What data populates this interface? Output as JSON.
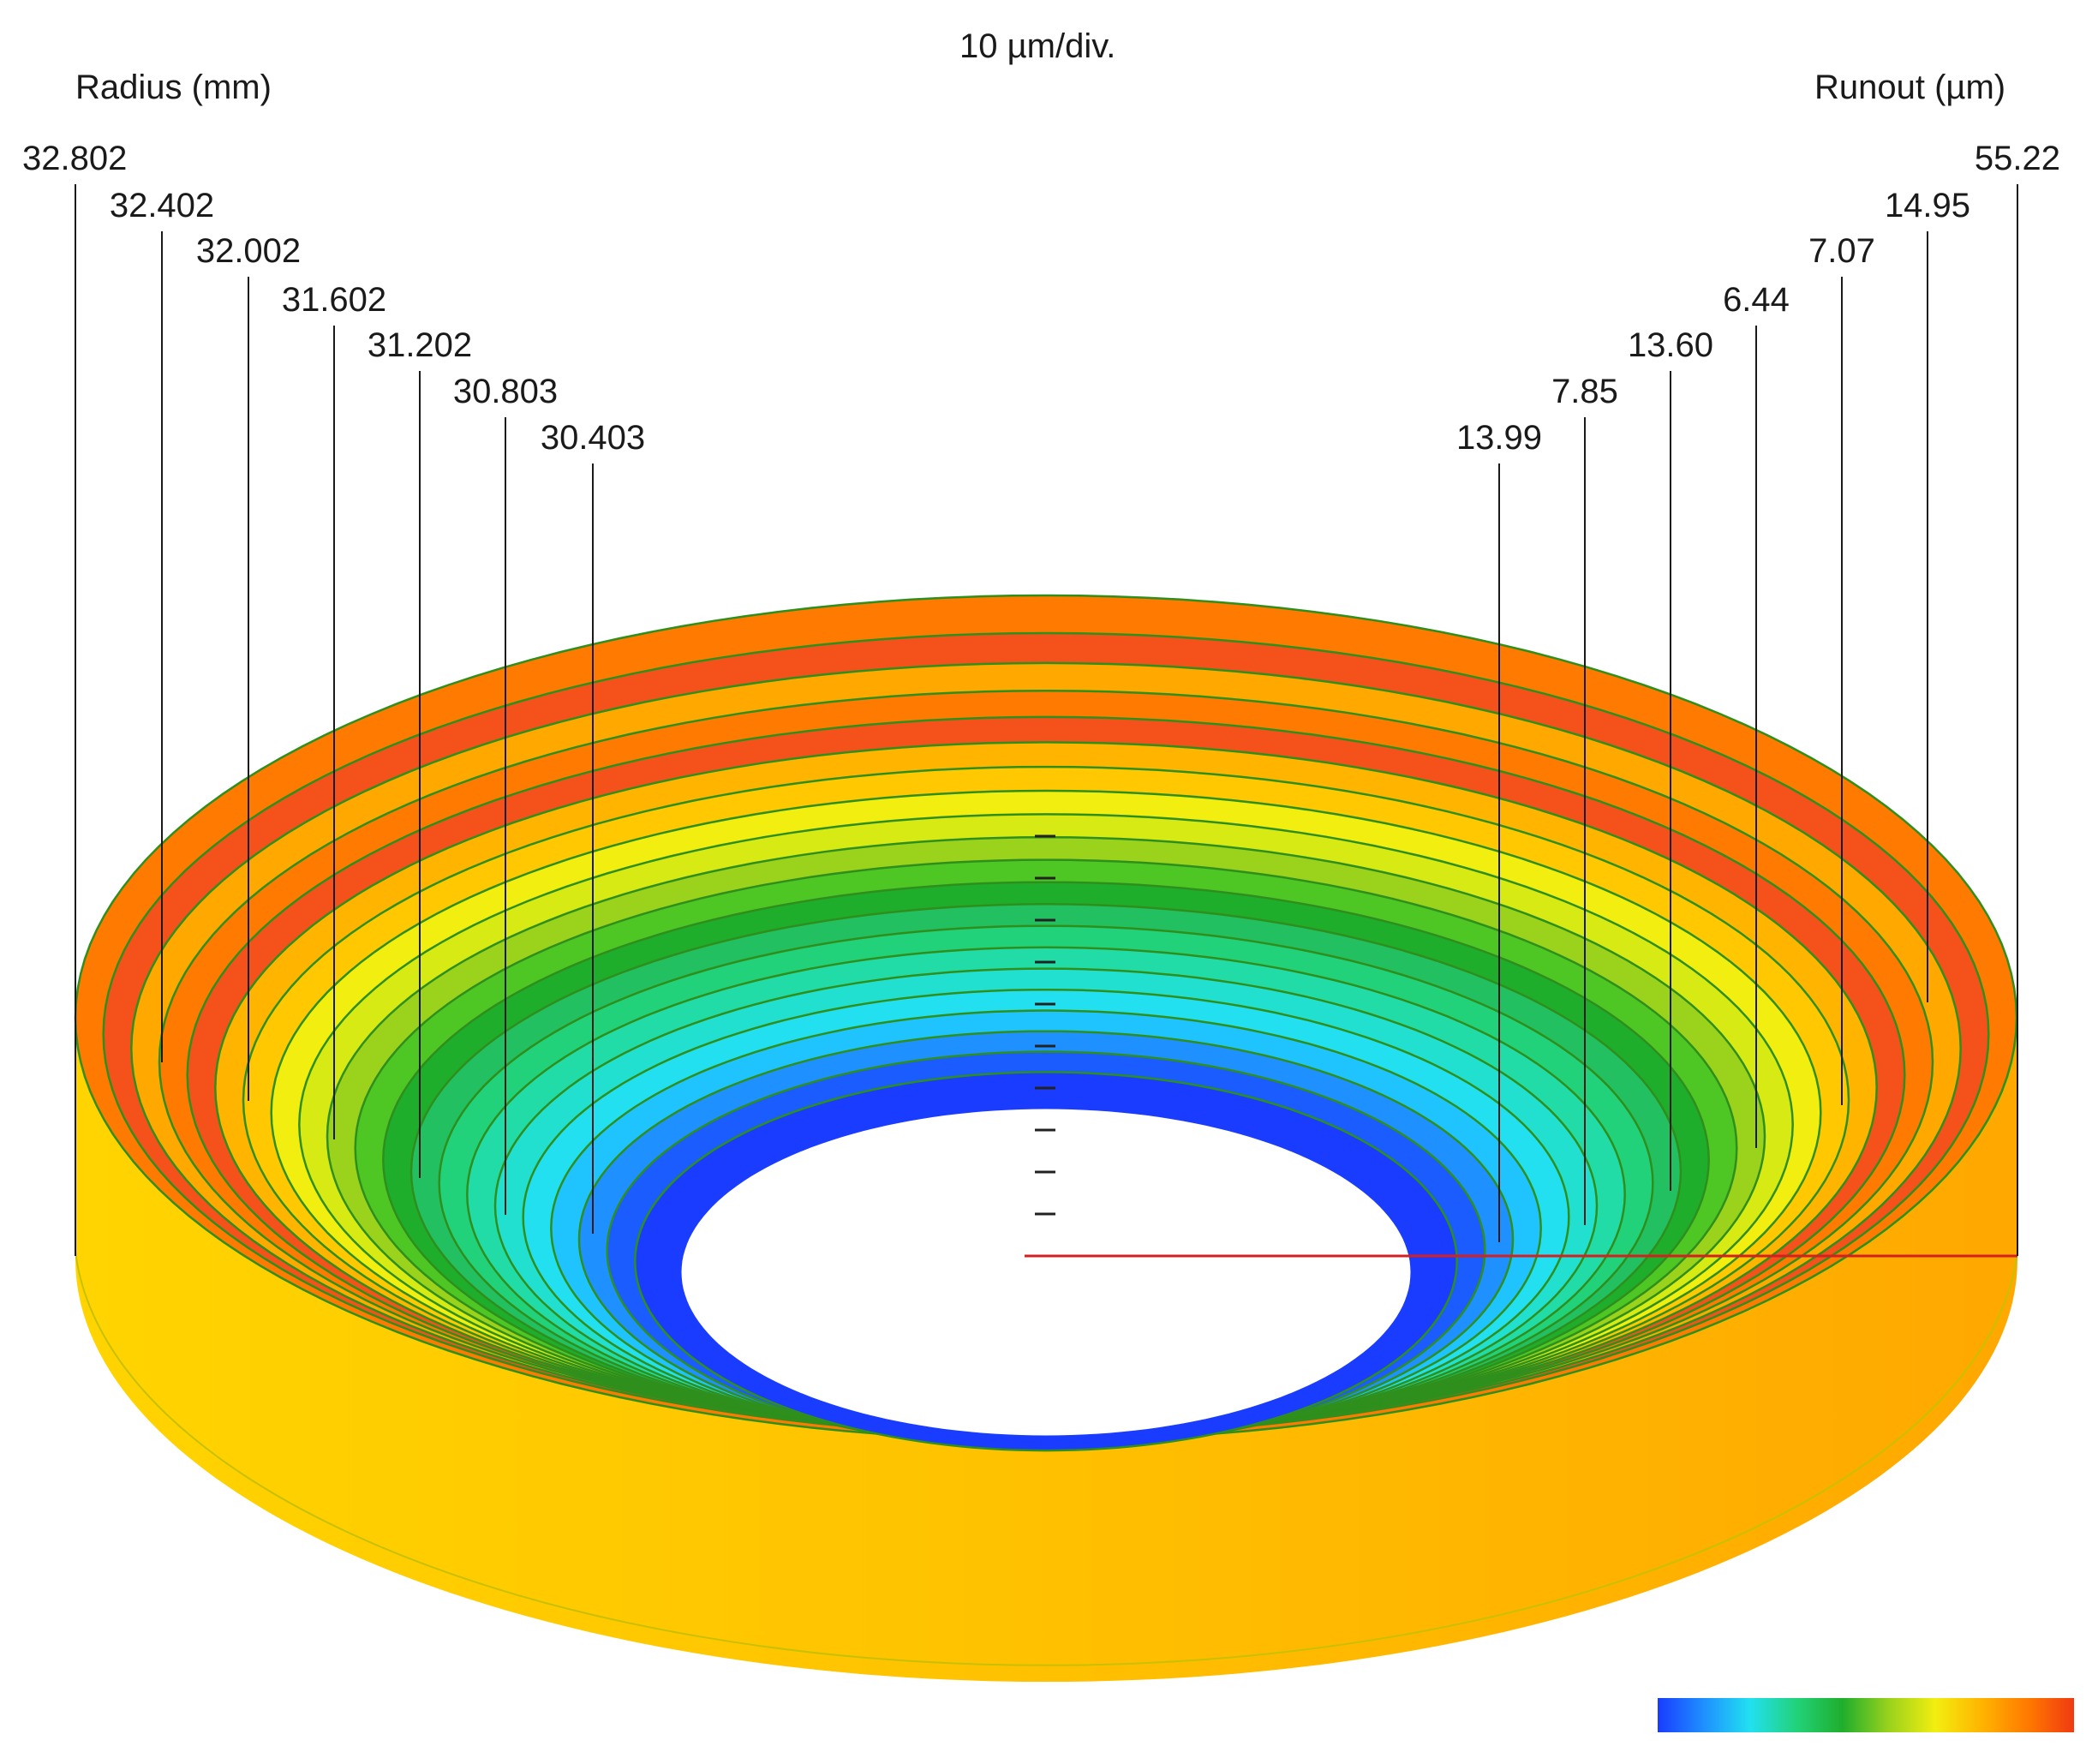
{
  "chart_data": {
    "type": "other",
    "subtype": "3d-ring-surface",
    "title": "10 µm/div.",
    "left_axis_label": "Radius (mm)",
    "right_axis_label": "Runout (µm)",
    "radius_labels_mm": [
      "32.802",
      "32.402",
      "32.002",
      "31.602",
      "31.202",
      "30.803",
      "30.403"
    ],
    "runout_labels_um": [
      "55.22",
      "14.95",
      "7.07",
      "6.44",
      "13.60",
      "7.85",
      "13.99"
    ],
    "vertical_scale_divisions": 10,
    "colormap": [
      "#1a3cff",
      "#1e90ff",
      "#22e0f0",
      "#22d27a",
      "#1fae2c",
      "#9ad21c",
      "#f2ee10",
      "#ffb400",
      "#ff7a00",
      "#f03a10"
    ]
  }
}
